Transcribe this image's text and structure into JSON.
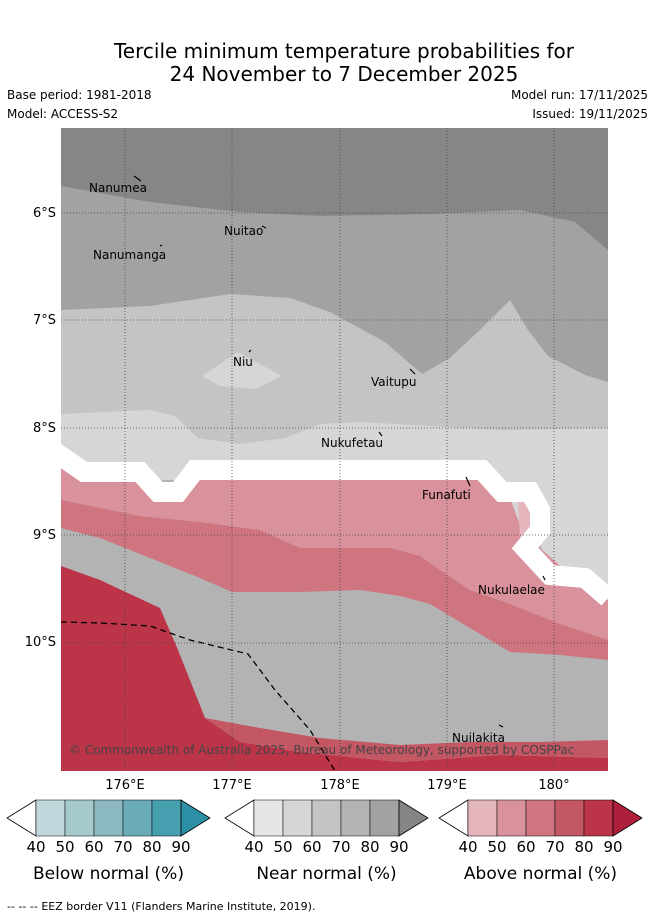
{
  "header": {
    "title_line1": "Tercile minimum temperature probabilities for",
    "title_line2": "24 November to 7 December 2025",
    "base_period": "Base period: 1981-2018",
    "model": "Model: ACCESS-S2",
    "model_run": "Model run: 17/11/2025",
    "issued": "Issued: 19/11/2025"
  },
  "map": {
    "lat_labels": [
      "6°S",
      "7°S",
      "8°S",
      "9°S",
      "10°S"
    ],
    "lon_labels": [
      "176°E",
      "177°E",
      "178°E",
      "179°E",
      "180°"
    ],
    "places": [
      "Nanumea",
      "Nuitao",
      "Nanumanga",
      "Niu",
      "Vaitupu",
      "Nukufetau",
      "Funafuti",
      "Nukulaelae",
      "Nuilakita"
    ],
    "credit": "© Commonwealth of Australia 2025, Bureau of Meteorology, supported by COSPPac",
    "eez_line_label": "EEZ border V11 (Flanders Marine Institute, 2019)."
  },
  "colorbars": [
    {
      "label": "Below normal (%)",
      "ticks": [
        "40",
        "50",
        "60",
        "70",
        "80",
        "90"
      ],
      "colors": [
        "#ffffff",
        "#c0d8dc",
        "#a6c9cd",
        "#8bb8c1",
        "#6aabb8",
        "#47a0b0",
        "#2d8fa5"
      ]
    },
    {
      "label": "Near normal (%)",
      "ticks": [
        "40",
        "50",
        "60",
        "70",
        "80",
        "90"
      ],
      "colors": [
        "#ffffff",
        "#e6e6e6",
        "#d6d6d6",
        "#c4c4c4",
        "#b3b3b3",
        "#a2a2a2",
        "#858585"
      ]
    },
    {
      "label": "Above normal (%)",
      "ticks": [
        "40",
        "50",
        "60",
        "70",
        "80",
        "90"
      ],
      "colors": [
        "#ffffff",
        "#e4b5bd",
        "#d9929b",
        "#cf7580",
        "#c45764",
        "#bb3448",
        "#ae1f3b"
      ]
    }
  ],
  "eez_legend_symbol": "-- -- --"
}
